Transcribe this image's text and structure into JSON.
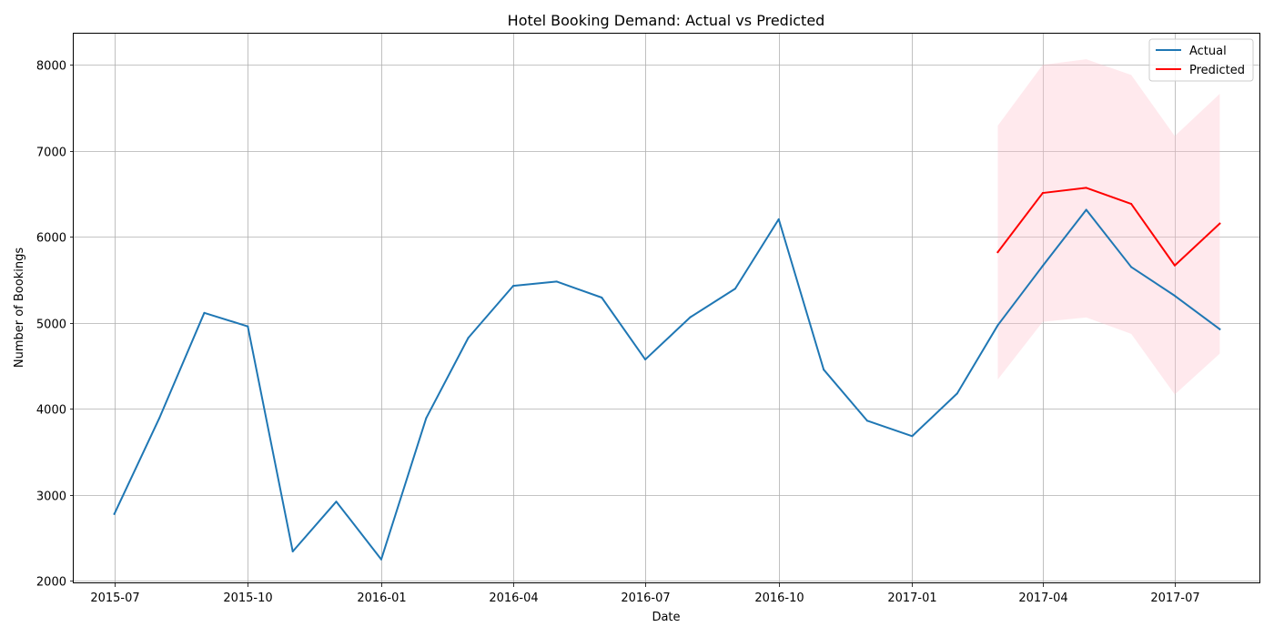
{
  "chart_data": {
    "type": "line",
    "title": "Hotel Booking Demand: Actual vs Predicted",
    "xlabel": "Date",
    "ylabel": "Number of Bookings",
    "grid": true,
    "legend_position": "top-right",
    "xlim": [
      "2015-06-03",
      "2017-08-29"
    ],
    "ylim": [
      1970,
      8360
    ],
    "x_ticks": [
      "2015-07",
      "2015-10",
      "2016-01",
      "2016-04",
      "2016-07",
      "2016-10",
      "2017-01",
      "2017-04",
      "2017-07"
    ],
    "y_ticks": [
      2000,
      3000,
      4000,
      5000,
      6000,
      7000,
      8000
    ],
    "series": [
      {
        "name": "Actual",
        "color": "#1f77b4",
        "x": [
          "2015-07-01",
          "2015-08-01",
          "2015-09-01",
          "2015-10-01",
          "2015-11-01",
          "2015-12-01",
          "2016-01-01",
          "2016-02-01",
          "2016-03-01",
          "2016-04-01",
          "2016-05-01",
          "2016-06-01",
          "2016-07-01",
          "2016-08-01",
          "2016-09-01",
          "2016-10-01",
          "2016-11-01",
          "2016-12-01",
          "2017-01-01",
          "2017-02-01",
          "2017-03-01",
          "2017-04-01",
          "2017-05-01",
          "2017-06-01",
          "2017-07-01",
          "2017-08-01"
        ],
        "values": [
          2776,
          3889,
          5114,
          4957,
          2340,
          2920,
          2248,
          3891,
          4824,
          5428,
          5478,
          5292,
          4572,
          5063,
          5395,
          6203,
          4454,
          3860,
          3681,
          4177,
          4970,
          5661,
          6313,
          5647,
          5313,
          4925
        ]
      },
      {
        "name": "Predicted",
        "color": "#ff0000",
        "x": [
          "2017-03-01",
          "2017-04-01",
          "2017-05-01",
          "2017-06-01",
          "2017-07-01",
          "2017-08-01"
        ],
        "values": [
          5820,
          6508,
          6568,
          6381,
          5665,
          6152
        ],
        "lower": [
          4340,
          5010,
          5060,
          4870,
          4165,
          4640
        ],
        "upper": [
          7290,
          7998,
          8063,
          7880,
          7170,
          7660
        ],
        "band_color": "#ffc0cb"
      }
    ]
  }
}
